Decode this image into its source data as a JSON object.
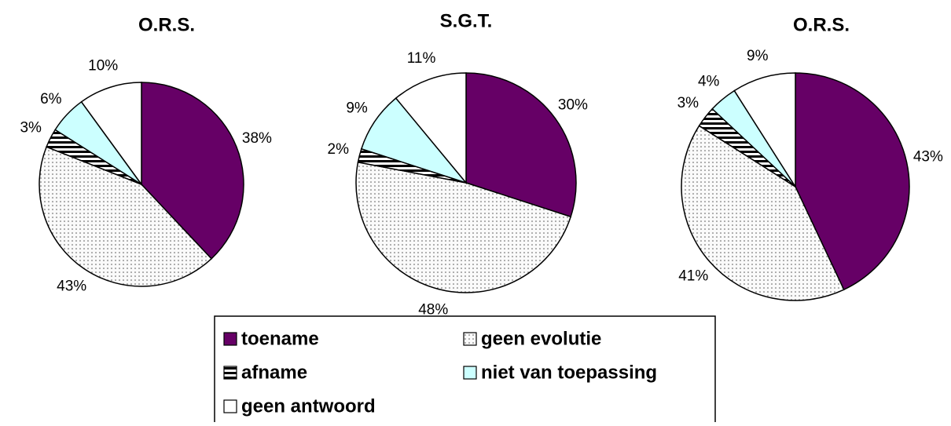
{
  "legend": {
    "labels": [
      "toename",
      "geen evolutie",
      "afname",
      "niet van toepassing",
      "geen antwoord"
    ],
    "colors": [
      "#660066",
      "#f2f2f2",
      "#000000",
      "#ccffff",
      "#ffffff"
    ]
  },
  "chart_data": [
    {
      "type": "pie",
      "title": "O.R.S.",
      "values": [
        38,
        43,
        3,
        6,
        10
      ],
      "value_labels": [
        "38%",
        "43%",
        "3%",
        "6%",
        "10%"
      ]
    },
    {
      "type": "pie",
      "title": "S.G.T.",
      "values": [
        30,
        48,
        2,
        9,
        11
      ],
      "value_labels": [
        "30%",
        "48%",
        "2%",
        "9%",
        "11%"
      ]
    },
    {
      "type": "pie",
      "title": "O.R.S.",
      "values": [
        43,
        41,
        3,
        4,
        9
      ],
      "value_labels": [
        "43%",
        "41%",
        "3%",
        "4%",
        "9%"
      ]
    }
  ]
}
